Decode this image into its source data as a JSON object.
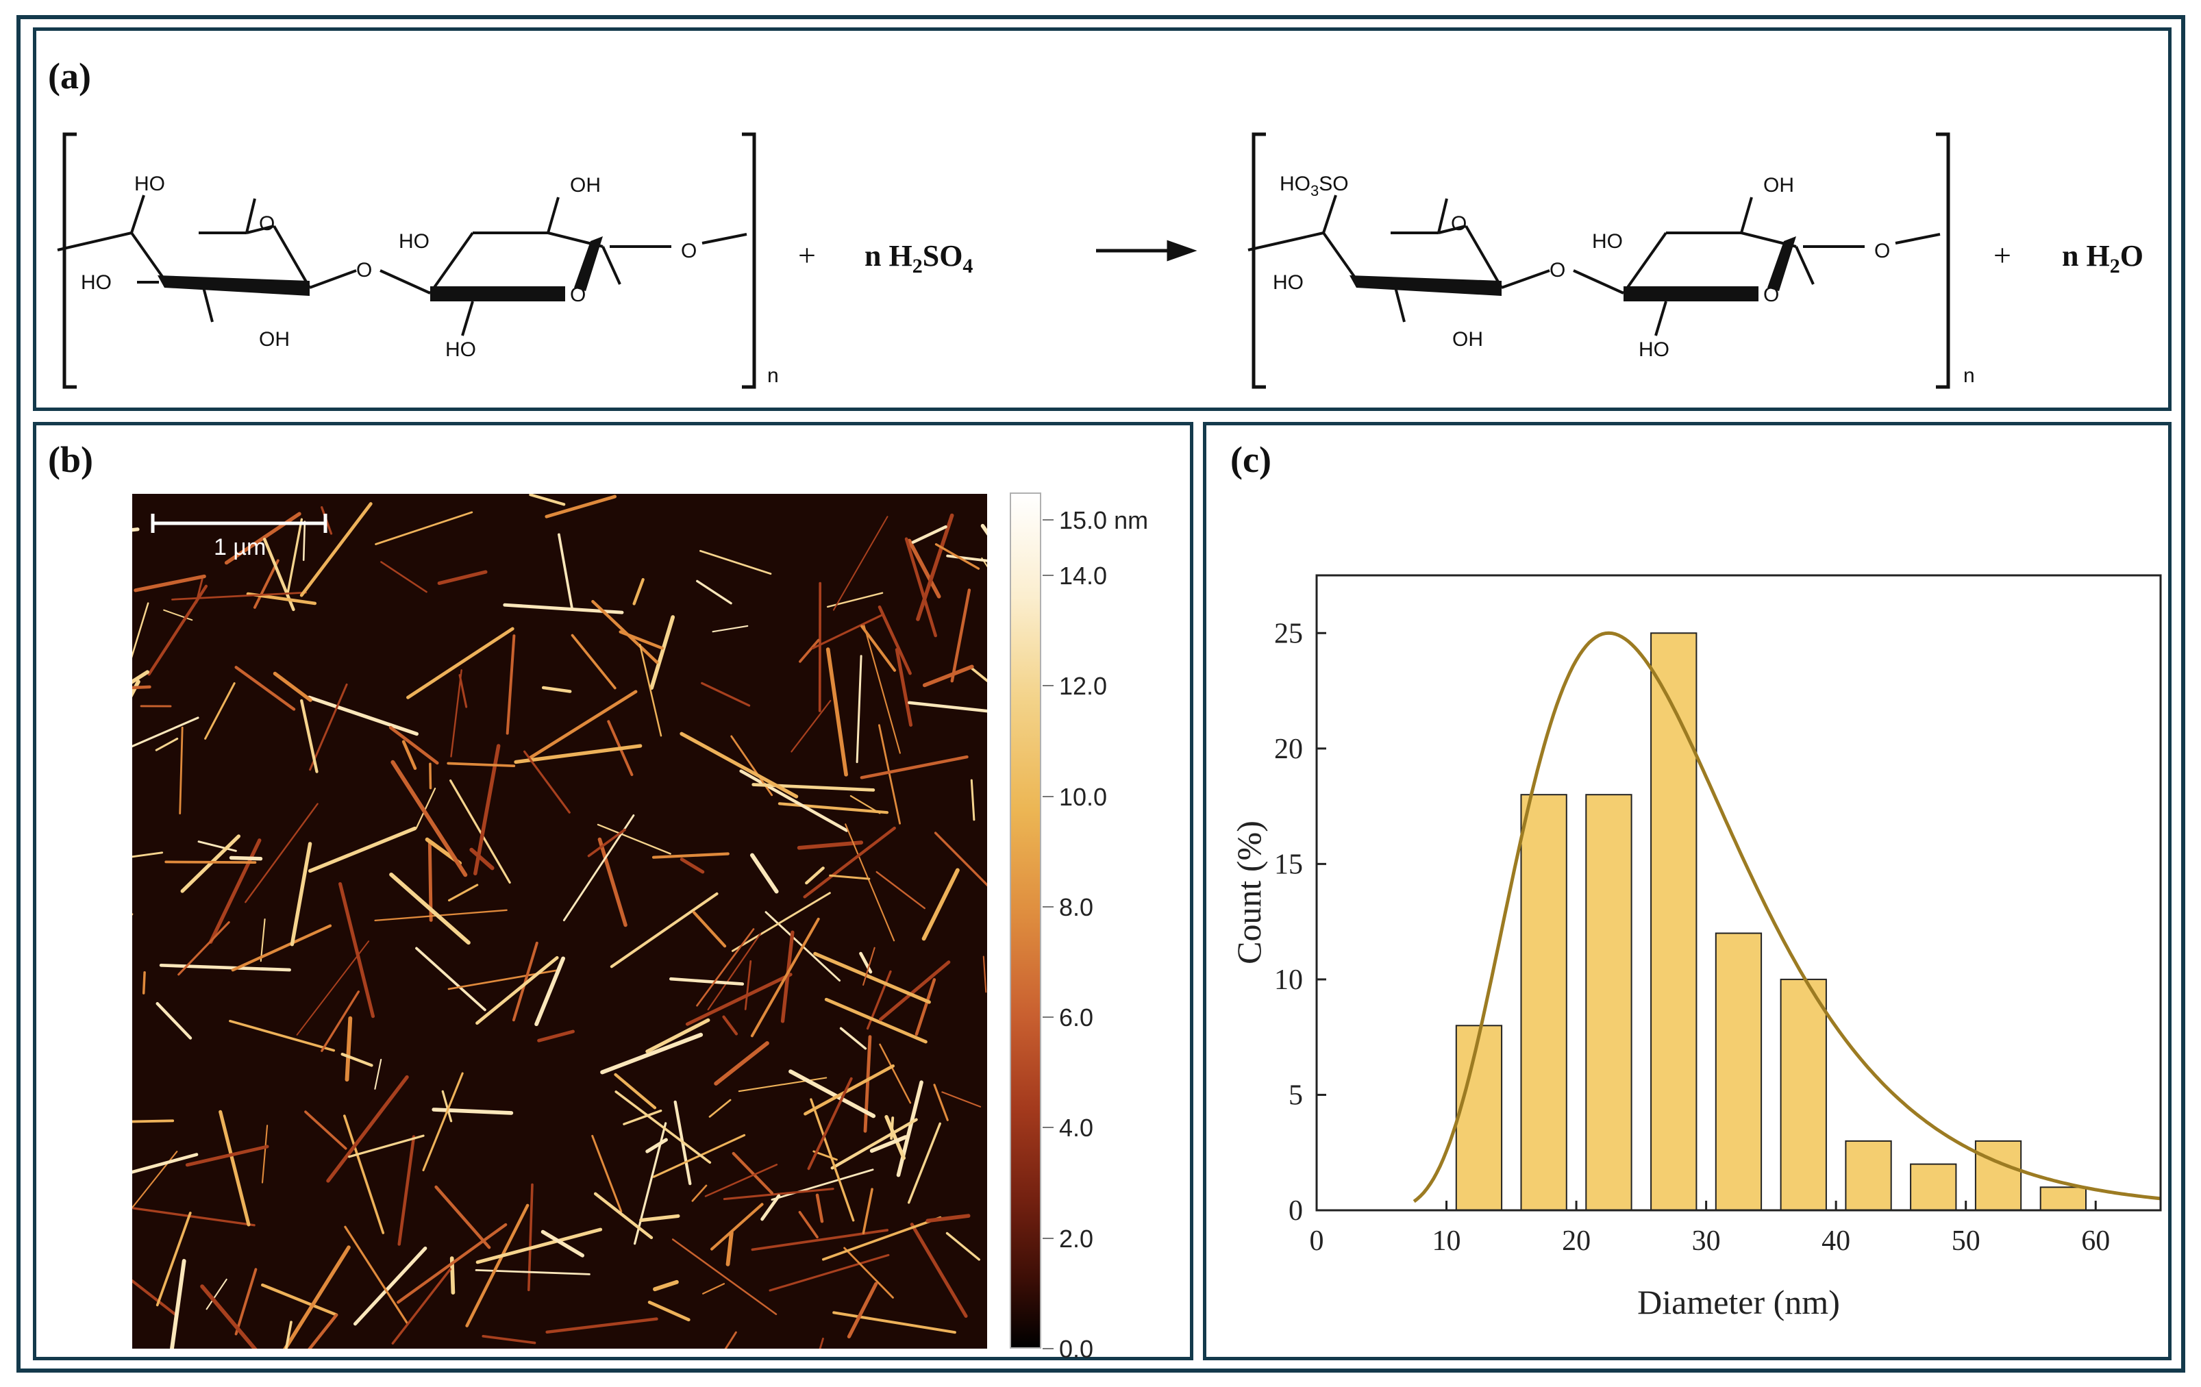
{
  "panels": {
    "a": {
      "label": "(a)",
      "reactant": {
        "top_left_group": "HO",
        "top_right_group": "OH",
        "right_ring_ho": "HO",
        "ring_o": "O",
        "bridge_o": "O",
        "left_ho": "HO",
        "bottom_oh": "OH",
        "bottom_ho": "HO",
        "ring2_o": "O",
        "end_o": "O",
        "subscript_n": "n"
      },
      "plus1": "+",
      "reagent_coef": "n",
      "reagent_parts": [
        "H",
        "2",
        "SO",
        "4"
      ],
      "product": {
        "top_left_group_parts": [
          "HO",
          "3",
          "SO"
        ],
        "top_right_group": "OH",
        "right_ring_ho": "HO",
        "ring_o": "O",
        "bridge_o": "O",
        "left_ho": "HO",
        "bottom_oh": "OH",
        "bottom_ho": "HO",
        "ring2_o": "O",
        "end_o": "O",
        "subscript_n": "n"
      },
      "plus2": "+",
      "water_coef": "n",
      "water_parts": [
        "H",
        "2",
        "O"
      ]
    },
    "b": {
      "label": "(b)",
      "scale_bar_text": "1 µm",
      "colorbar_labels": [
        "15.0 nm",
        "14.0",
        "12.0",
        "10.0",
        "8.0",
        "6.0",
        "4.0",
        "2.0",
        "0.0"
      ],
      "colorbar_values": [
        15.0,
        14.0,
        12.0,
        10.0,
        8.0,
        6.0,
        4.0,
        2.0,
        0.0
      ]
    },
    "c": {
      "label": "(c)"
    }
  },
  "chart_data": {
    "type": "bar",
    "title": "",
    "xlabel": "Diameter (nm)",
    "ylabel": "Count (%)",
    "x": [
      12.5,
      17.5,
      22.5,
      27.5,
      32.5,
      37.5,
      42.5,
      47.5,
      52.5,
      57.5
    ],
    "values": [
      8,
      18,
      18,
      25,
      12,
      10,
      3,
      2,
      3,
      1
    ],
    "bin_width": 3.5,
    "xlim": [
      0,
      65
    ],
    "ylim": [
      0,
      27.5
    ],
    "xticks": [
      0,
      10,
      20,
      30,
      40,
      50,
      60
    ],
    "yticks": [
      0,
      5,
      10,
      15,
      20,
      25
    ],
    "fit_curve": {
      "type": "lognormal",
      "peak_x": 22.5,
      "peak_y": 25,
      "x_start": 7.5,
      "x_end": 65
    },
    "bar_color": "#f4ce70",
    "bar_edge_color": "#222222",
    "curve_color": "#9c7b22",
    "grid": false
  },
  "colors": {
    "frame": "#143a4c",
    "afm_background": "#1d0803"
  }
}
